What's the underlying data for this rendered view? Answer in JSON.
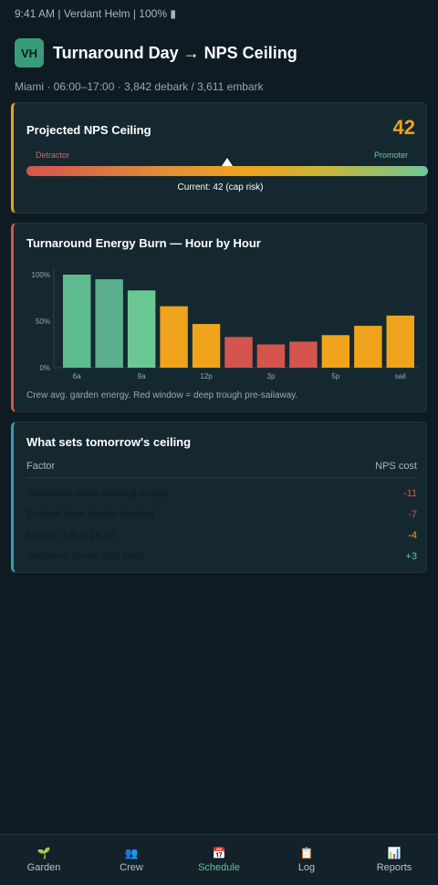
{
  "status_bar": "9:41 AM | Verdant Helm | 100% ▮",
  "header": {
    "avatar": "VH",
    "title": "Turnaround Day → NPS Ceiling"
  },
  "subtitle": "Miami · 06:00–17:00 · 3,842 debark / 3,611 embark",
  "nps": {
    "title": "Projected NPS Ceiling",
    "value": "42",
    "detractor_label": "Detractor",
    "promoter_label": "Promoter",
    "marker_fraction": 0.5,
    "current_text": "Current: 42 (cap risk)"
  },
  "energy": {
    "title": "Turnaround Energy Burn — Hour by Hour",
    "caption": "Crew avg. garden energy. Red window = deep trough pre-sailaway."
  },
  "chart_data": {
    "type": "bar",
    "categories": [
      "6a",
      "",
      "9a",
      "",
      "12p",
      "",
      "3p",
      "",
      "5p",
      "",
      "sail"
    ],
    "values": [
      100,
      95,
      83,
      66,
      47,
      33,
      25,
      28,
      35,
      45,
      56
    ],
    "colors": [
      "#5dbb8e",
      "#5aaf8c",
      "#6cc892",
      "#f0a31c",
      "#f0a31c",
      "#d4554e",
      "#d4554e",
      "#d4554e",
      "#f0a31c",
      "#f0a31c",
      "#f0a31c"
    ],
    "ytick_labels": [
      "100%",
      "50%",
      "0%"
    ],
    "ytick_values": [
      100,
      50,
      0
    ],
    "ylim": [
      0,
      100
    ]
  },
  "factors": {
    "title": "What sets tomorrow's ceiling",
    "col_factor": "Factor",
    "col_cost": "NPS cost",
    "rows": [
      {
        "name": "Stateroom team entering trough",
        "cost": "-11",
        "color": "#d4554e"
      },
      {
        "name": "Embark desk double-booked",
        "cost": "-7",
        "color": "#d4554e"
      },
      {
        "name": "Muster drill at 16:30",
        "cost": "-4",
        "color": "#f0a31c"
      },
      {
        "name": "Welcome dinner shift fresh",
        "cost": "+3",
        "color": "#5fc59a"
      }
    ]
  },
  "nav": [
    {
      "icon": "🌱",
      "label": "Garden",
      "icon_name": "sprout-icon"
    },
    {
      "icon": "👥",
      "label": "Crew",
      "icon_name": "people-icon"
    },
    {
      "icon": "📅",
      "label": "Schedule",
      "icon_name": "calendar-icon"
    },
    {
      "icon": "📋",
      "label": "Log",
      "icon_name": "clipboard-icon"
    },
    {
      "icon": "📊",
      "label": "Reports",
      "icon_name": "bar-chart-icon"
    }
  ]
}
